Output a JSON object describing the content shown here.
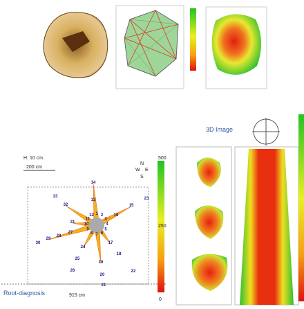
{
  "root_diagnosis": {
    "title": "Root-diagnosis",
    "height": "H: 10 cm",
    "scale": "200 cm",
    "width": "915 cm",
    "compass": [
      "N",
      "W",
      "E",
      "S"
    ],
    "colorbar_ticks": [
      "500",
      "250",
      "0"
    ],
    "sensor_labels": [
      "14",
      "15",
      "16",
      "17",
      "18",
      "19",
      "20",
      "21",
      "22",
      "23",
      "24",
      "25",
      "26",
      "27",
      "28",
      "29",
      "30",
      "31",
      "32",
      "33",
      "13",
      "1",
      "2",
      "3",
      "4",
      "5",
      "6",
      "7",
      "8",
      "9",
      "10",
      "11",
      "12"
    ]
  },
  "image_3d": {
    "title": "3D Image"
  }
}
